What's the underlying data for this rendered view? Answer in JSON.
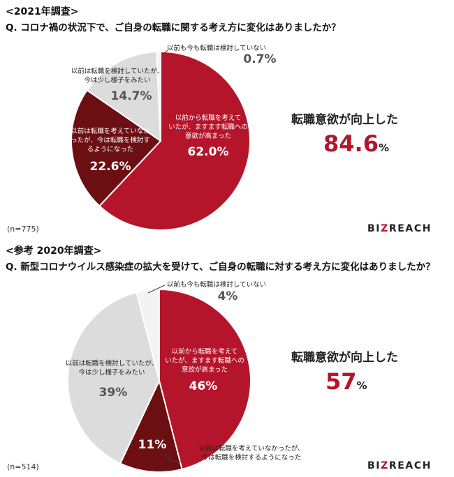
{
  "chart_data": [
    {
      "type": "pie",
      "section_title": "<2021年調査>",
      "question": "Q. コロナ禍の状況下で、ご自身の転職に関する考え方に変化はありましたか？",
      "sample_size": "(n=775)",
      "slices": [
        {
          "label_lines": [
            "以前から転職を考えて",
            "いたが、ますます転職への",
            "意欲が高まった"
          ],
          "value": 62.0,
          "value_label": "62.0%",
          "color": "#b5152b"
        },
        {
          "label_lines": [
            "以前は転職を考えていなか",
            "ったが、今は転職を検討す",
            "るようになった"
          ],
          "value": 22.6,
          "value_label": "22.6%",
          "color": "#6b0f12"
        },
        {
          "label_lines": [
            "以前は転職を検討していたが、",
            "今は少し様子をみたい"
          ],
          "value": 14.7,
          "value_label": "14.7%",
          "color": "#dcdcdc"
        },
        {
          "label_lines": [
            "以前も今も転職は検討していない"
          ],
          "value": 0.7,
          "value_label": "0.7%",
          "color": "#f3f3f3"
        }
      ],
      "result_label": "転職意欲が向上した",
      "result_value": "84.6",
      "result_unit": "%"
    },
    {
      "type": "pie",
      "section_title": "<参考 2020年調査>",
      "question": "Q. 新型コロナウイルス感染症の拡大を受けて、ご自身の転職に対する考え方に変化はありましたか？",
      "sample_size": "(n=514)",
      "slices": [
        {
          "label_lines": [
            "以前から転職を考えて",
            "いたが、ますます転職への",
            "意欲が高まった"
          ],
          "value": 46,
          "value_label": "46%",
          "color": "#b5152b"
        },
        {
          "label_lines": [
            "以前は転職を考えていなかったが、",
            "今は転職を検討するようになった"
          ],
          "value": 11,
          "value_label": "11%",
          "color": "#6b0f12"
        },
        {
          "label_lines": [
            "以前は転職を検討していたが、",
            "今は少し様子をみたい"
          ],
          "value": 39,
          "value_label": "39%",
          "color": "#dcdcdc"
        },
        {
          "label_lines": [
            "以前も今も転職は検討していない"
          ],
          "value": 4,
          "value_label": "4%",
          "color": "#f3f3f3"
        }
      ],
      "result_label": "転職意欲が向上した",
      "result_value": "57",
      "result_unit": "%"
    }
  ],
  "logo": {
    "part1": "BI",
    "part2": "Z",
    "part3": "REAC",
    "part4": "H"
  }
}
